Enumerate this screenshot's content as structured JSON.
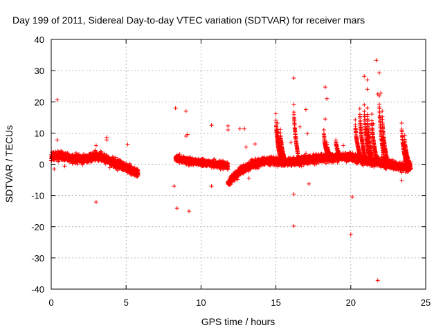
{
  "chart_data": {
    "type": "scatter",
    "title": "Day 199 of 2011, Sidereal Day-to-day VTEC variation (SDTVAR) for receiver mars",
    "xlabel": "GPS time / hours",
    "ylabel": "SDTVAR / TECUs",
    "xlim": [
      0,
      25
    ],
    "ylim": [
      -40,
      40
    ],
    "xticks": [
      0,
      5,
      10,
      15,
      20,
      25
    ],
    "yticks": [
      -40,
      -30,
      -20,
      -10,
      0,
      10,
      20,
      30,
      40
    ],
    "grid": true,
    "marker": "+",
    "color": "#ff0000",
    "band_segments": [
      {
        "x": [
          0.0,
          0.5,
          1.0,
          1.5,
          2.0,
          2.5,
          3.0,
          3.5,
          4.0,
          4.5,
          5.0,
          5.5,
          5.8
        ],
        "y": [
          2.5,
          2.8,
          2.2,
          2.0,
          1.6,
          1.8,
          2.8,
          2.0,
          0.8,
          0.0,
          -1.2,
          -2.2,
          -3.0
        ],
        "spread": 2.2
      },
      {
        "x": [
          8.3,
          8.6,
          9.0,
          9.5,
          10.0,
          10.5,
          11.0,
          11.5,
          11.8
        ],
        "y": [
          2.0,
          1.6,
          1.2,
          0.8,
          0.5,
          0.3,
          0.0,
          -0.2,
          -0.5
        ],
        "spread": 1.8
      },
      {
        "x": [
          11.8,
          12.0,
          12.3,
          12.7,
          13.0,
          13.5,
          14.0,
          14.5,
          15.0,
          15.5,
          16.0,
          16.5,
          17.0,
          17.5,
          18.0,
          18.5,
          19.0,
          19.5,
          20.0,
          20.5,
          21.0,
          21.5,
          22.0,
          22.5,
          23.0,
          23.5,
          24.0
        ],
        "y": [
          -6.0,
          -5.0,
          -3.5,
          -2.0,
          -1.0,
          0.0,
          0.8,
          1.2,
          1.0,
          0.8,
          0.5,
          0.8,
          1.5,
          1.8,
          2.0,
          2.2,
          2.0,
          2.5,
          2.2,
          1.8,
          1.2,
          0.8,
          0.5,
          0.0,
          -0.5,
          -0.8,
          -1.0
        ],
        "spread": 2.2
      }
    ],
    "spikes": [
      {
        "x": 15.0,
        "y0": 0.5,
        "peak": 16
      },
      {
        "x": 15.1,
        "y0": 0.5,
        "peak": 13
      },
      {
        "x": 15.3,
        "y0": 0.5,
        "peak": 11
      },
      {
        "x": 16.2,
        "y0": 1.0,
        "peak": 19
      },
      {
        "x": 18.2,
        "y0": 1.5,
        "peak": 11
      },
      {
        "x": 18.4,
        "y0": 1.5,
        "peak": 7
      },
      {
        "x": 19.0,
        "y0": 2.0,
        "peak": 8
      },
      {
        "x": 20.3,
        "y0": 2.2,
        "peak": 14
      },
      {
        "x": 20.6,
        "y0": 2.0,
        "peak": 18
      },
      {
        "x": 20.9,
        "y0": 1.8,
        "peak": 19
      },
      {
        "x": 21.1,
        "y0": 1.5,
        "peak": 18
      },
      {
        "x": 21.4,
        "y0": 1.2,
        "peak": 16
      },
      {
        "x": 21.9,
        "y0": 1.0,
        "peak": 22
      },
      {
        "x": 22.1,
        "y0": 0.8,
        "peak": 17
      },
      {
        "x": 23.4,
        "y0": -0.5,
        "peak": 13
      },
      {
        "x": 23.6,
        "y0": -0.5,
        "peak": 9
      }
    ],
    "outliers": [
      [
        0.4,
        20.7
      ],
      [
        0.4,
        7.8
      ],
      [
        0.2,
        -1.5
      ],
      [
        0.9,
        -0.6
      ],
      [
        3.0,
        -12.1
      ],
      [
        3.0,
        6.0
      ],
      [
        3.7,
        7.8
      ],
      [
        3.7,
        8.6
      ],
      [
        5.1,
        6.4
      ],
      [
        8.3,
        18.0
      ],
      [
        8.2,
        -7.0
      ],
      [
        8.4,
        -14.1
      ],
      [
        9.0,
        17.0
      ],
      [
        9.0,
        9.0
      ],
      [
        9.1,
        9.5
      ],
      [
        9.2,
        -15.0
      ],
      [
        10.7,
        12.5
      ],
      [
        10.7,
        -7.0
      ],
      [
        11.8,
        12.3
      ],
      [
        11.8,
        11.0
      ],
      [
        12.6,
        11.4
      ],
      [
        12.9,
        11.4
      ],
      [
        13.0,
        5.5
      ],
      [
        13.6,
        6.5
      ],
      [
        13.2,
        -4.5
      ],
      [
        16.2,
        27.6
      ],
      [
        16.2,
        -9.6
      ],
      [
        16.2,
        -19.8
      ],
      [
        16.6,
        12.0
      ],
      [
        17.0,
        17.5
      ],
      [
        17.1,
        9.8
      ],
      [
        17.2,
        -6.3
      ],
      [
        18.3,
        24.7
      ],
      [
        18.4,
        21.0
      ],
      [
        18.3,
        14.5
      ],
      [
        20.1,
        -10.5
      ],
      [
        20.0,
        -22.5
      ],
      [
        20.9,
        28.2
      ],
      [
        21.1,
        24.0
      ],
      [
        21.1,
        27.0
      ],
      [
        21.5,
        13.0
      ],
      [
        21.7,
        33.3
      ],
      [
        21.8,
        22.5
      ],
      [
        21.9,
        29.3
      ],
      [
        22.0,
        22.8
      ],
      [
        21.8,
        -37.2
      ],
      [
        23.4,
        -5.2
      ],
      [
        15.4,
        7.0
      ],
      [
        16.0,
        7.0
      ],
      [
        17.0,
        3.5
      ],
      [
        19.5,
        6.0
      ]
    ]
  }
}
